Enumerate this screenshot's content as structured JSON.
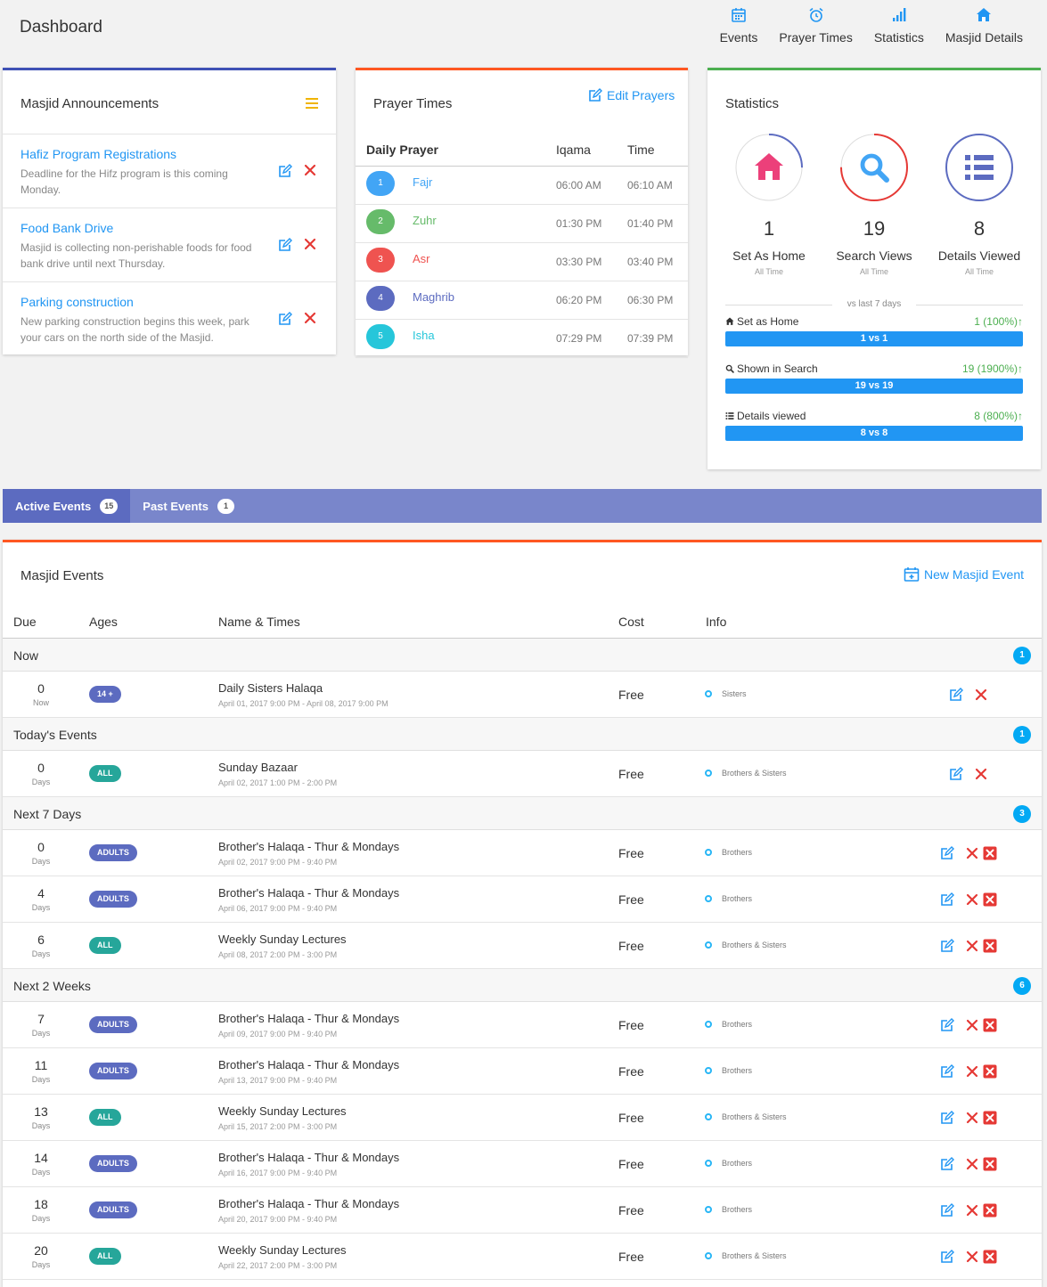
{
  "header": {
    "title": "Dashboard"
  },
  "nav": [
    {
      "label": "Events",
      "icon": "calendar-icon"
    },
    {
      "label": "Prayer Times",
      "icon": "alarm-clock-icon"
    },
    {
      "label": "Statistics",
      "icon": "bar-signal-icon"
    },
    {
      "label": "Masjid Details",
      "icon": "home-icon"
    }
  ],
  "announcements": {
    "title": "Masjid Announcements",
    "items": [
      {
        "title": "Hafiz Program Registrations",
        "desc": "Deadline for the Hifz program is this coming Monday."
      },
      {
        "title": "Food Bank Drive",
        "desc": "Masjid is collecting non-perishable foods for food bank drive until next Thursday."
      },
      {
        "title": "Parking construction",
        "desc": "New parking construction begins this week, park your cars on the north side of the Masjid."
      }
    ]
  },
  "prayer": {
    "title": "Prayer Times",
    "edit_label": "Edit Prayers",
    "headers": {
      "prayer": "Daily Prayer",
      "iqama": "Iqama",
      "time": "Time"
    },
    "rows": [
      {
        "num": "1",
        "name": "Fajr",
        "iqama": "06:00 AM",
        "time": "06:10 AM",
        "color": "#42a5f5"
      },
      {
        "num": "2",
        "name": "Zuhr",
        "iqama": "01:30 PM",
        "time": "01:40 PM",
        "color": "#66bb6a"
      },
      {
        "num": "3",
        "name": "Asr",
        "iqama": "03:30 PM",
        "time": "03:40 PM",
        "color": "#ef5350"
      },
      {
        "num": "4",
        "name": "Maghrib",
        "iqama": "06:20 PM",
        "time": "06:30 PM",
        "color": "#5c6bc0"
      },
      {
        "num": "5",
        "name": "Isha",
        "iqama": "07:29 PM",
        "time": "07:39 PM",
        "color": "#26c6da"
      }
    ]
  },
  "stats": {
    "title": "Statistics",
    "items": [
      {
        "value": "1",
        "label": "Set As Home",
        "sub": "All Time",
        "icon": "home-icon",
        "color": "#ec407a",
        "ring": "#5c6bc0",
        "ring_fraction": 0.25
      },
      {
        "value": "19",
        "label": "Search Views",
        "sub": "All Time",
        "icon": "search-icon",
        "color": "#42a5f5",
        "ring": "#e53935",
        "ring_fraction": 0.75
      },
      {
        "value": "8",
        "label": "Details Viewed",
        "sub": "All Time",
        "icon": "list-icon",
        "color": "#5c6bc0",
        "ring": "#5c6bc0",
        "ring_fraction": 1.0
      }
    ],
    "vs_label": "vs last 7 days",
    "compare": [
      {
        "label": "Set as Home",
        "icon": "home-icon",
        "change": "1 (100%)↑",
        "bar": "1 vs 1"
      },
      {
        "label": "Shown in Search",
        "icon": "search-icon",
        "change": "19 (1900%)↑",
        "bar": "19 vs 19"
      },
      {
        "label": "Details viewed",
        "icon": "list-icon",
        "change": "8 (800%)↑",
        "bar": "8 vs 8"
      }
    ]
  },
  "tabs": [
    {
      "label": "Active Events",
      "count": "15"
    },
    {
      "label": "Past Events",
      "count": "1"
    }
  ],
  "events": {
    "title": "Masjid Events",
    "new_label": "New Masjid Event",
    "headers": {
      "due": "Due",
      "ages": "Ages",
      "name": "Name & Times",
      "cost": "Cost",
      "info": "Info"
    },
    "groups": [
      {
        "name": "Now",
        "count": "1",
        "rows": [
          {
            "due": "0",
            "unit": "Now",
            "age": "14 +",
            "age_color": "#5c6bc0",
            "name": "Daily Sisters Halaqa",
            "time": "April 01, 2017 9:00 PM - April 08, 2017 9:00 PM",
            "cost": "Free",
            "info": "Sisters",
            "extra_delete": false
          }
        ]
      },
      {
        "name": "Today's Events",
        "count": "1",
        "rows": [
          {
            "due": "0",
            "unit": "Days",
            "age": "ALL",
            "age_color": "#26a69a",
            "name": "Sunday Bazaar",
            "time": "April 02, 2017 1:00 PM - 2:00 PM",
            "cost": "Free",
            "info": "Brothers & Sisters",
            "extra_delete": false
          }
        ]
      },
      {
        "name": "Next 7 Days",
        "count": "3",
        "rows": [
          {
            "due": "0",
            "unit": "Days",
            "age": "ADULTS",
            "age_color": "#5c6bc0",
            "name": "Brother's Halaqa - Thur & Mondays",
            "time": "April 02, 2017 9:00 PM - 9:40 PM",
            "cost": "Free",
            "info": "Brothers",
            "extra_delete": true
          },
          {
            "due": "4",
            "unit": "Days",
            "age": "ADULTS",
            "age_color": "#5c6bc0",
            "name": "Brother's Halaqa - Thur & Mondays",
            "time": "April 06, 2017 9:00 PM - 9:40 PM",
            "cost": "Free",
            "info": "Brothers",
            "extra_delete": true
          },
          {
            "due": "6",
            "unit": "Days",
            "age": "ALL",
            "age_color": "#26a69a",
            "name": "Weekly Sunday Lectures",
            "time": "April 08, 2017 2:00 PM - 3:00 PM",
            "cost": "Free",
            "info": "Brothers & Sisters",
            "extra_delete": true
          }
        ]
      },
      {
        "name": "Next 2 Weeks",
        "count": "6",
        "rows": [
          {
            "due": "7",
            "unit": "Days",
            "age": "ADULTS",
            "age_color": "#5c6bc0",
            "name": "Brother's Halaqa - Thur & Mondays",
            "time": "April 09, 2017 9:00 PM - 9:40 PM",
            "cost": "Free",
            "info": "Brothers",
            "extra_delete": true
          },
          {
            "due": "11",
            "unit": "Days",
            "age": "ADULTS",
            "age_color": "#5c6bc0",
            "name": "Brother's Halaqa - Thur & Mondays",
            "time": "April 13, 2017 9:00 PM - 9:40 PM",
            "cost": "Free",
            "info": "Brothers",
            "extra_delete": true
          },
          {
            "due": "13",
            "unit": "Days",
            "age": "ALL",
            "age_color": "#26a69a",
            "name": "Weekly Sunday Lectures",
            "time": "April 15, 2017 2:00 PM - 3:00 PM",
            "cost": "Free",
            "info": "Brothers & Sisters",
            "extra_delete": true
          },
          {
            "due": "14",
            "unit": "Days",
            "age": "ADULTS",
            "age_color": "#5c6bc0",
            "name": "Brother's Halaqa - Thur & Mondays",
            "time": "April 16, 2017 9:00 PM - 9:40 PM",
            "cost": "Free",
            "info": "Brothers",
            "extra_delete": true
          },
          {
            "due": "18",
            "unit": "Days",
            "age": "ADULTS",
            "age_color": "#5c6bc0",
            "name": "Brother's Halaqa - Thur & Mondays",
            "time": "April 20, 2017 9:00 PM - 9:40 PM",
            "cost": "Free",
            "info": "Brothers",
            "extra_delete": true
          },
          {
            "due": "20",
            "unit": "Days",
            "age": "ALL",
            "age_color": "#26a69a",
            "name": "Weekly Sunday Lectures",
            "time": "April 22, 2017 2:00 PM - 3:00 PM",
            "cost": "Free",
            "info": "Brothers & Sisters",
            "extra_delete": true
          }
        ]
      }
    ]
  },
  "colors": {
    "accent": "#2196f3",
    "delete": "#e53935",
    "announce_border": "#3f51b5",
    "prayer_border": "#ff5722",
    "stats_border": "#4caf50",
    "tabs_bg": "#7986cb"
  }
}
